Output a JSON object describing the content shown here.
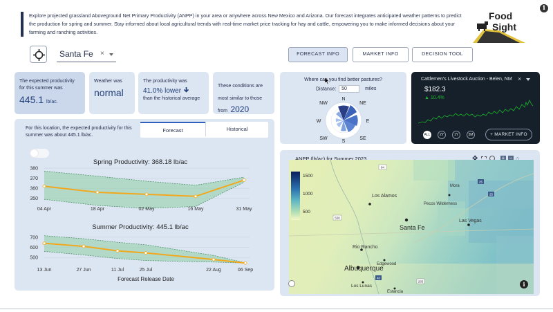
{
  "intro": {
    "text": "Explore projected grassland Aboveground Net Primary Productivity (ANPP) in your area or anywhere across New Mexico and Arizona. Our forecast integrates anticipated weather patterns to predict the production for spring and summer. Stay informed about local agricultural trends with real-time market price tracking for hay and cattle, empowering you to make informed decisions about your farming and ranching activities."
  },
  "logo": {
    "line1": "Food",
    "line2": "Sight"
  },
  "info_icon": "i",
  "location": {
    "value": "Santa Fe",
    "clear": "×"
  },
  "nav": {
    "forecast": "FORECAST INFO",
    "market": "MARKET INFO",
    "decision": "DECISION TOOL"
  },
  "stats": {
    "productivity_label": "The expected productivity for this summer was",
    "productivity_value": "445.1",
    "productivity_unit": "lb/ac.",
    "weather_label": "Weather was",
    "weather_value": "normal",
    "change_label": "The productivity was",
    "change_value": "41.0% lower",
    "change_suffix": "than the historical average",
    "similar_label": "These conditions are most similar to those from",
    "similar_year": "2020"
  },
  "forecast": {
    "description": "For this location, the expected productivity for this summer was about 445.1 lb/ac.",
    "tabs": [
      "Forecast",
      "Historical"
    ],
    "xaxis_label": "Forecast Release Date"
  },
  "chart_data": [
    {
      "type": "line",
      "title": "Spring Productivity: 368.18 lb/ac",
      "categories": [
        "04 Apr",
        "18 Apr",
        "02 May",
        "16 May",
        "31 May"
      ],
      "series": [
        {
          "values": [
            362,
            356,
            354,
            352,
            368
          ]
        }
      ],
      "band_lower": [
        349,
        343,
        340,
        342,
        366
      ],
      "band_upper": [
        377,
        372,
        367,
        363,
        371
      ],
      "ylim": [
        345,
        380
      ],
      "yticks": [
        350,
        360,
        370,
        380
      ],
      "xlabel": "Forecast Release Date"
    },
    {
      "type": "line",
      "title": "Summer Productivity: 445.1 lb/ac",
      "categories": [
        "13 Jun",
        "27 Jun",
        "11 Jul",
        "25 Jul",
        "22 Aug",
        "06 Sep"
      ],
      "series": [
        {
          "values": [
            640,
            610,
            565,
            545,
            480,
            445
          ]
        }
      ],
      "band_lower": [
        560,
        525,
        490,
        470,
        455,
        445
      ],
      "band_upper": [
        715,
        685,
        650,
        625,
        520,
        448
      ],
      "ylim": [
        440,
        740
      ],
      "yticks": [
        500,
        600,
        700
      ],
      "xlabel": "Forecast Release Date"
    }
  ],
  "compass": {
    "question": "Where can you find better pastures?",
    "distance_label": "Distance:",
    "distance_value": "50",
    "distance_unit": "miles",
    "directions": [
      "N",
      "NE",
      "E",
      "SE",
      "S",
      "SW",
      "W",
      "NW"
    ]
  },
  "market": {
    "title": "Cattlemen's Livestock Auction - Belen, NM",
    "price": "$182.3",
    "change": "▲ 10.4%",
    "ranges": [
      "ALL",
      "2Y",
      "1Y",
      "3M"
    ],
    "button": "+ MARKET INFO",
    "up_color": "#1db32a"
  },
  "map": {
    "title": "ANPP (lb/ac) for Summer 2023",
    "colorbar_ticks": [
      "1500",
      "1000",
      "500"
    ],
    "places": [
      "Los Alamos",
      "Pecos Wilderness",
      "Mora",
      "Santa Fe",
      "Las Vegas",
      "Rio Rancho",
      "Albuquerque",
      "Edgewood",
      "Los Lunas",
      "Estancia"
    ],
    "roads": [
      "550",
      "25",
      "40",
      "285",
      "25",
      "84"
    ]
  }
}
